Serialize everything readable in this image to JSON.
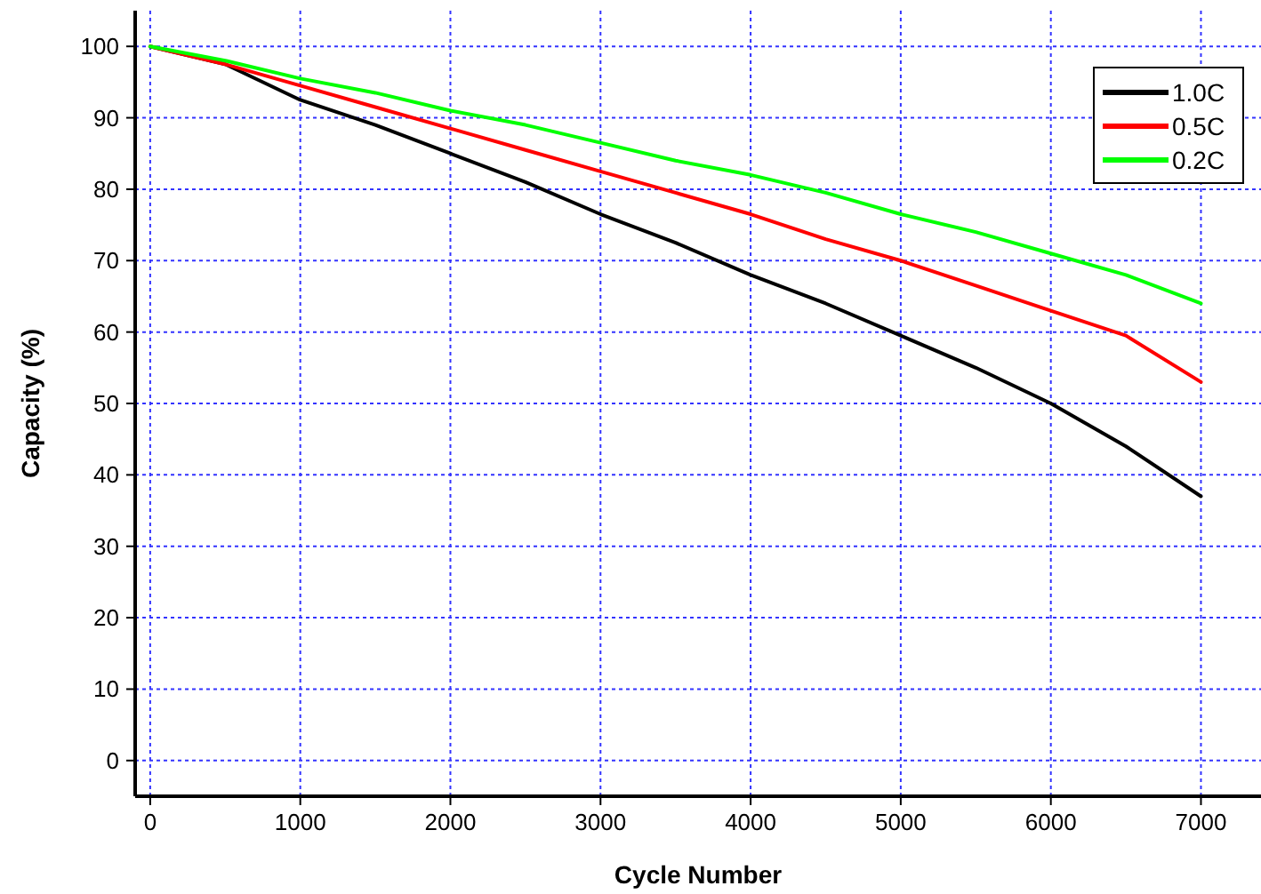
{
  "chart_data": {
    "type": "line",
    "xlabel": "Cycle Number",
    "ylabel": "Capacity (%)",
    "xlim": [
      -100,
      7400
    ],
    "ylim": [
      -5,
      105
    ],
    "xticks": [
      0,
      1000,
      2000,
      3000,
      4000,
      5000,
      6000,
      7000
    ],
    "yticks": [
      0,
      10,
      20,
      30,
      40,
      50,
      60,
      70,
      80,
      90,
      100
    ],
    "grid": true,
    "legend": "top right",
    "line_style": "solid",
    "marker": "none",
    "x": [
      0,
      500,
      1000,
      1500,
      2000,
      2500,
      3000,
      3500,
      4000,
      4500,
      5000,
      5500,
      6000,
      6500,
      7000
    ],
    "series": [
      {
        "name": "1.0C",
        "color": "#000000",
        "values": [
          100,
          97.5,
          92.5,
          89,
          85,
          81,
          76.5,
          72.5,
          68,
          64,
          59.5,
          55,
          50,
          44,
          37
        ]
      },
      {
        "name": "0.5C",
        "color": "#ff0000",
        "values": [
          100,
          97.5,
          94.5,
          91.5,
          88.5,
          85.5,
          82.5,
          79.5,
          76.5,
          73,
          70,
          66.5,
          63,
          59.5,
          53
        ]
      },
      {
        "name": "0.2C",
        "color": "#00ff00",
        "values": [
          100,
          98,
          95.5,
          93.5,
          91,
          89,
          86.5,
          84,
          82,
          79.5,
          76.5,
          74,
          71,
          68,
          64
        ]
      }
    ]
  }
}
